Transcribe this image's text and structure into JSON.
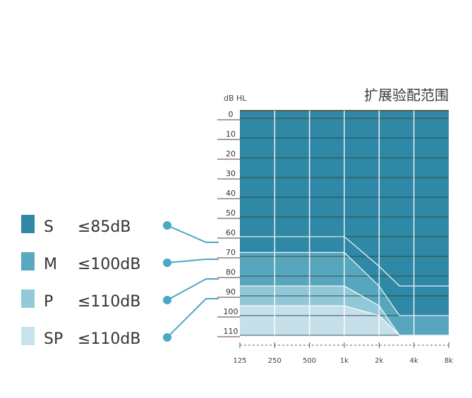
{
  "chart_data": {
    "type": "area",
    "title": "扩展验配范围",
    "ylabel": "dB HL",
    "xlabel": "",
    "x_categories": [
      "125",
      "250",
      "500",
      "1k",
      "2k",
      "4k",
      "8k"
    ],
    "y_ticks": [
      "0",
      "10",
      "20",
      "30",
      "40",
      "50",
      "60",
      "70",
      "80",
      "90",
      "100",
      "110"
    ],
    "ylim": [
      -5,
      115
    ],
    "y_inverted": true,
    "grid": true,
    "legend_position": "left",
    "series": [
      {
        "name": "S",
        "limit": "≤85dB",
        "color": "#2e88a6",
        "points": [
          [
            "125",
            60
          ],
          [
            "1k",
            60
          ],
          [
            "2k",
            75
          ],
          [
            "3k",
            85
          ],
          [
            "8k",
            85
          ]
        ]
      },
      {
        "name": "M",
        "limit": "≤100dB",
        "color": "#5aa8bf",
        "points": [
          [
            "125",
            68
          ],
          [
            "1k",
            68
          ],
          [
            "2k",
            85
          ],
          [
            "3k",
            100
          ],
          [
            "8k",
            100
          ]
        ]
      },
      {
        "name": "P",
        "limit": "≤110dB",
        "color": "#94c9d9",
        "points": [
          [
            "125",
            85
          ],
          [
            "1k",
            85
          ],
          [
            "2k",
            95
          ],
          [
            "3k",
            110
          ],
          [
            "8k",
            110
          ]
        ]
      },
      {
        "name": "SP",
        "limit": "≤110dB",
        "color": "#c8e2ec",
        "points": [
          [
            "125",
            95
          ],
          [
            "1k",
            95
          ],
          [
            "2k",
            100
          ],
          [
            "3k",
            110
          ],
          [
            "8k",
            110
          ]
        ]
      }
    ]
  }
}
